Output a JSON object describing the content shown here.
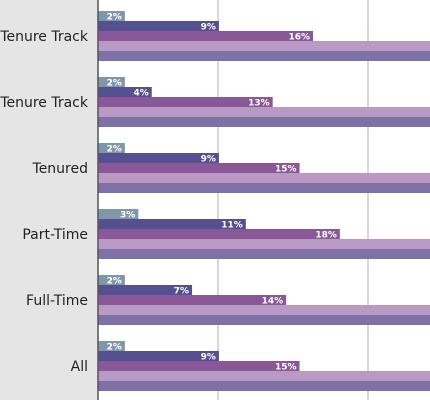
{
  "chart_data": {
    "type": "bar",
    "orientation": "horizontal",
    "title": "",
    "xlabel": "",
    "ylabel": "",
    "categories": [
      "Tenure Track",
      "Tenure Track",
      "Tenured",
      "Part-Time",
      "Full-Time",
      "All"
    ],
    "series": [
      {
        "values": [
          2,
          2,
          2,
          3,
          2,
          2
        ],
        "labels": [
          "2%",
          "2%",
          "2%",
          "3%",
          "2%",
          "2%"
        ],
        "color": "#7f97a8"
      },
      {
        "values": [
          9,
          4,
          9,
          11,
          7,
          9
        ],
        "labels": [
          "9%",
          "4%",
          "9%",
          "11%",
          "7%",
          "9%"
        ],
        "color": "#55508f"
      },
      {
        "values": [
          16,
          13,
          15,
          18,
          14,
          15
        ],
        "labels": [
          "16%",
          "13%",
          "15%",
          "18%",
          "14%",
          "15%"
        ],
        "color": "#8a5898"
      },
      {
        "values": [
          null,
          null,
          null,
          null,
          null,
          null
        ],
        "labels": [
          "",
          "",
          "",
          "",
          "",
          ""
        ],
        "color": "#b99ac4"
      },
      {
        "values": [
          null,
          null,
          null,
          null,
          null,
          null
        ],
        "labels": [
          "",
          "",
          "",
          "",
          "",
          ""
        ],
        "color": "#7d71a6"
      }
    ],
    "grid": true,
    "legend": "none",
    "colors": {
      "left_panel": "#e5e5e5",
      "gridline": "#b0b0b0",
      "axis": "#555555"
    }
  }
}
